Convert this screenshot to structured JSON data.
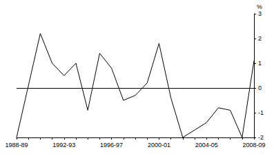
{
  "chart_data": {
    "type": "line",
    "categories": [
      "1988-89",
      null,
      null,
      null,
      "1992-93",
      null,
      null,
      null,
      "1996-97",
      null,
      null,
      null,
      "2000-01",
      null,
      null,
      null,
      "2004-05",
      null,
      null,
      null,
      "2008-09"
    ],
    "values": [
      -2.0,
      0.1,
      2.2,
      1.0,
      0.5,
      1.0,
      -0.9,
      1.4,
      0.8,
      -0.5,
      -0.3,
      0.2,
      1.8,
      -0.4,
      -2.0,
      -1.7,
      -1.4,
      -0.8,
      -0.9,
      -2.0,
      1.1
    ],
    "color": "#000000",
    "ylabel": "%",
    "ylim": [
      -2,
      3
    ],
    "yticks": [
      -2,
      -1,
      0,
      1,
      2,
      3
    ],
    "grid": false
  }
}
